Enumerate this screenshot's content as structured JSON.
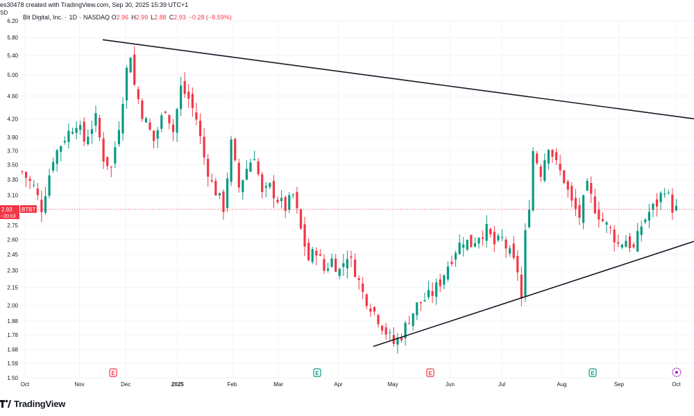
{
  "header": {
    "author_fragment": "es30478 created with TradingView.com, Sep 30, 2025 15:39 UTC+1"
  },
  "legend": {
    "symbol_name": "Bit Digital, Inc.",
    "interval": "1D",
    "exchange": "NASDAQ",
    "open_label": "O",
    "open": "2.96",
    "high_label": "H",
    "high": "2.99",
    "low_label": "L",
    "low": "2.88",
    "close_label": "C",
    "close": "2.93",
    "change": "−0.28 (−8.59%)"
  },
  "price_tag": {
    "price": "2.93",
    "ticker": "BTBT",
    "countdown": "−20:03",
    "currency_fragment": "SD"
  },
  "events": [
    {
      "kind": "E",
      "x": "Nov",
      "color": "#f23645"
    },
    {
      "kind": "E",
      "x": "Mar",
      "color": "#089981"
    },
    {
      "kind": "E",
      "x": "May",
      "color": "#f23645"
    },
    {
      "kind": "E",
      "x": "Aug",
      "color": "#089981"
    },
    {
      "kind": "dividend",
      "x": "Oct",
      "color": "#9c27b0"
    }
  ],
  "brand": {
    "name": "TradingView"
  },
  "colors": {
    "up": "#089981",
    "down": "#f23645",
    "line": "#131722",
    "price_line": "#f23645"
  },
  "chart_data": {
    "type": "candlestick",
    "title": "Bit Digital, Inc. · 1D · NASDAQ",
    "y_scale": "log",
    "yticks": [
      1.5,
      1.59,
      1.68,
      1.78,
      1.88,
      2.0,
      2.15,
      2.3,
      2.45,
      2.6,
      2.75,
      3.1,
      3.3,
      3.5,
      3.7,
      3.9,
      4.2,
      4.6,
      5.0,
      5.4,
      5.8,
      6.2
    ],
    "xticks": [
      {
        "label": "Oct",
        "bold": false
      },
      {
        "label": "Nov",
        "bold": false
      },
      {
        "label": "Dec",
        "bold": false
      },
      {
        "label": "2025",
        "bold": true
      },
      {
        "label": "Feb",
        "bold": false
      },
      {
        "label": "Mar",
        "bold": false
      },
      {
        "label": "Apr",
        "bold": false
      },
      {
        "label": "May",
        "bold": false
      },
      {
        "label": "Jun",
        "bold": false
      },
      {
        "label": "Jul",
        "bold": false
      },
      {
        "label": "Aug",
        "bold": false
      },
      {
        "label": "Sep",
        "bold": false
      },
      {
        "label": "Oct",
        "bold": false
      }
    ],
    "last_price": 2.93,
    "close_path": [
      [
        0,
        3.4
      ],
      [
        3,
        3.2
      ],
      [
        5,
        2.95
      ],
      [
        8,
        3.6
      ],
      [
        11,
        3.9
      ],
      [
        14,
        4.15
      ],
      [
        16,
        3.85
      ],
      [
        19,
        4.2
      ],
      [
        21,
        3.6
      ],
      [
        23,
        3.45
      ],
      [
        25,
        4.1
      ],
      [
        27,
        5.1
      ],
      [
        28,
        5.45
      ],
      [
        29,
        4.8
      ],
      [
        31,
        4.3
      ],
      [
        34,
        3.85
      ],
      [
        37,
        4.4
      ],
      [
        39,
        4.0
      ],
      [
        41,
        4.75
      ],
      [
        43,
        4.55
      ],
      [
        45,
        4.2
      ],
      [
        47,
        3.6
      ],
      [
        49,
        3.25
      ],
      [
        51,
        3.05
      ],
      [
        52,
        2.95
      ],
      [
        54,
        3.8
      ],
      [
        56,
        3.2
      ],
      [
        58,
        3.45
      ],
      [
        60,
        3.65
      ],
      [
        62,
        3.1
      ],
      [
        64,
        3.2
      ],
      [
        66,
        3.05
      ],
      [
        68,
        2.95
      ],
      [
        70,
        3.1
      ],
      [
        72,
        2.7
      ],
      [
        74,
        2.4
      ],
      [
        76,
        2.5
      ],
      [
        78,
        2.3
      ],
      [
        80,
        2.4
      ],
      [
        82,
        2.3
      ],
      [
        84,
        2.45
      ],
      [
        86,
        2.3
      ],
      [
        88,
        2.1
      ],
      [
        90,
        2.0
      ],
      [
        92,
        1.9
      ],
      [
        94,
        1.8
      ],
      [
        96,
        1.72
      ],
      [
        98,
        1.78
      ],
      [
        100,
        1.9
      ],
      [
        102,
        2.0
      ],
      [
        104,
        2.05
      ],
      [
        106,
        2.1
      ],
      [
        108,
        2.2
      ],
      [
        110,
        2.35
      ],
      [
        112,
        2.5
      ],
      [
        114,
        2.6
      ],
      [
        116,
        2.55
      ],
      [
        118,
        2.65
      ],
      [
        120,
        2.7
      ],
      [
        122,
        2.55
      ],
      [
        124,
        2.6
      ],
      [
        126,
        2.45
      ],
      [
        128,
        2.3
      ],
      [
        129,
        2.05
      ],
      [
        130,
        2.65
      ],
      [
        131,
        3.0
      ],
      [
        132,
        3.7
      ],
      [
        134,
        3.4
      ],
      [
        136,
        3.8
      ],
      [
        138,
        3.5
      ],
      [
        140,
        3.3
      ],
      [
        142,
        3.0
      ],
      [
        144,
        2.85
      ],
      [
        146,
        3.2
      ],
      [
        148,
        2.95
      ],
      [
        150,
        2.8
      ],
      [
        152,
        2.7
      ],
      [
        154,
        2.55
      ],
      [
        156,
        2.6
      ],
      [
        158,
        2.5
      ],
      [
        160,
        2.75
      ],
      [
        162,
        2.9
      ],
      [
        164,
        3.0
      ],
      [
        166,
        3.2
      ],
      [
        168,
        2.95
      ],
      [
        169,
        2.93
      ]
    ],
    "trendlines": [
      {
        "name": "upper",
        "from": {
          "x": "2024-11-12",
          "y": 5.75
        },
        "to": {
          "x": "2025-10-04",
          "y": 4.2
        }
      },
      {
        "name": "lower",
        "from": {
          "x": "2025-04-14",
          "y": 1.7
        },
        "to": {
          "x": "2025-10-04",
          "y": 2.58
        }
      }
    ]
  }
}
